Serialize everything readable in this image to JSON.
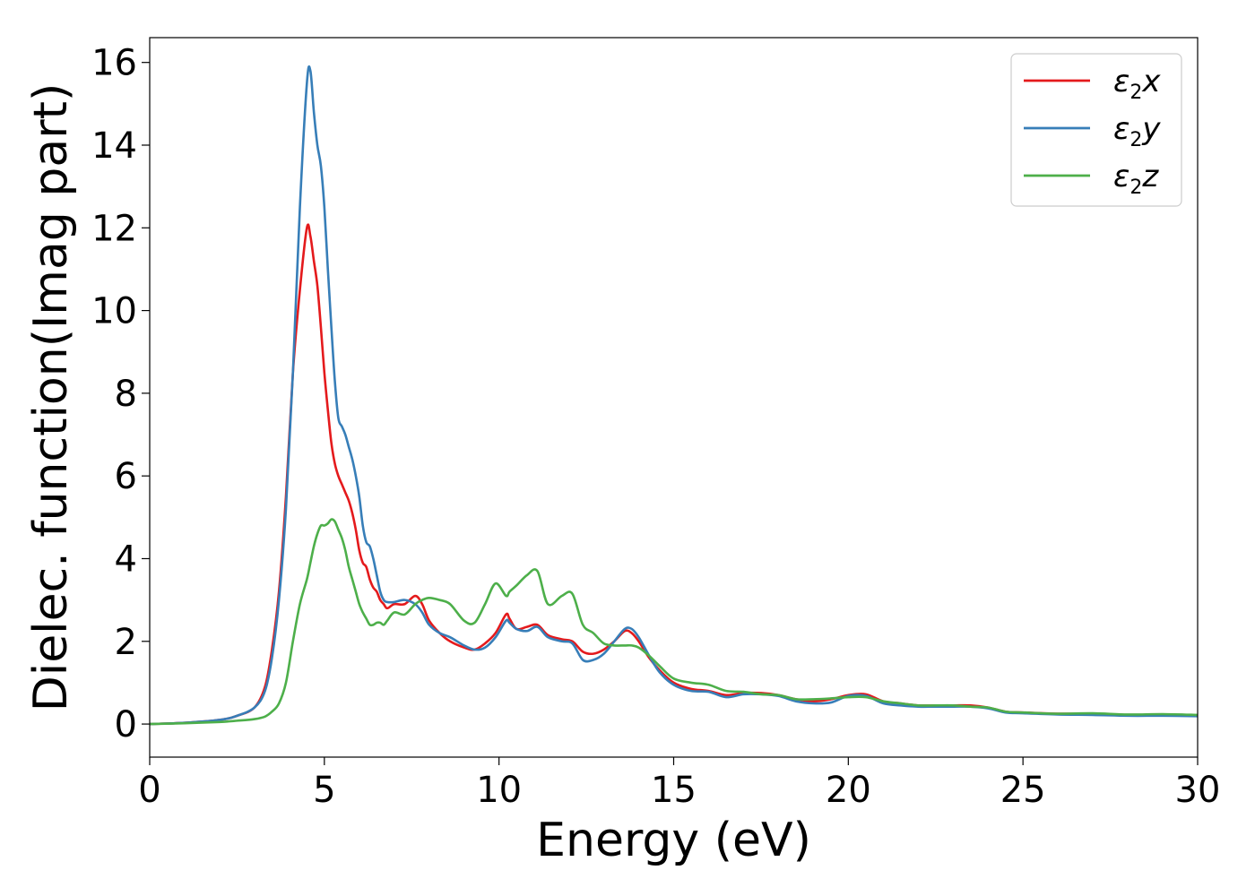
{
  "chart_data": {
    "type": "line",
    "title": "",
    "xlabel": "Energy (eV)",
    "ylabel": "Dielec. function(Imag part)",
    "xlim": [
      0,
      30
    ],
    "ylim": [
      -0.8,
      16.6
    ],
    "xticks": [
      0,
      5,
      10,
      15,
      20,
      25,
      30
    ],
    "xtick_labels": [
      "0",
      "5",
      "10",
      "15",
      "20",
      "25",
      "30"
    ],
    "yticks": [
      0,
      2,
      4,
      6,
      8,
      10,
      12,
      14,
      16
    ],
    "ytick_labels": [
      "0",
      "2",
      "4",
      "6",
      "8",
      "10",
      "12",
      "14",
      "16"
    ],
    "grid": false,
    "legend_position": "top-right",
    "series": [
      {
        "name": "ε2x",
        "label_base": "ε",
        "label_sub": "2",
        "label_suffix": "x",
        "color": "#e41a1c",
        "x": [
          0,
          1,
          2,
          2.5,
          3,
          3.3,
          3.5,
          3.7,
          3.9,
          4.1,
          4.3,
          4.5,
          4.6,
          4.7,
          4.8,
          4.9,
          5.0,
          5.1,
          5.2,
          5.3,
          5.4,
          5.5,
          5.6,
          5.7,
          5.8,
          5.9,
          6.0,
          6.1,
          6.2,
          6.3,
          6.4,
          6.5,
          6.6,
          6.7,
          6.8,
          7.0,
          7.3,
          7.6,
          7.8,
          8.0,
          8.3,
          8.6,
          9.0,
          9.3,
          9.6,
          9.9,
          10.2,
          10.3,
          10.5,
          10.8,
          11.1,
          11.4,
          11.8,
          12.1,
          12.4,
          12.7,
          13.0,
          13.3,
          13.6,
          13.8,
          14.0,
          14.3,
          14.6,
          15.0,
          15.5,
          16.0,
          16.5,
          17.0,
          17.5,
          18.0,
          18.5,
          19.0,
          19.5,
          20.0,
          20.5,
          21.0,
          21.5,
          22.0,
          22.5,
          23.0,
          23.5,
          24.0,
          24.5,
          25.0,
          26.0,
          27.0,
          28.0,
          29.0,
          30.0
        ],
        "values": [
          0.0,
          0.03,
          0.1,
          0.2,
          0.4,
          0.9,
          1.8,
          3.2,
          5.5,
          8.5,
          10.5,
          12.0,
          11.8,
          11.2,
          10.6,
          9.6,
          8.5,
          7.6,
          6.8,
          6.3,
          6.0,
          5.8,
          5.6,
          5.4,
          5.1,
          4.7,
          4.2,
          3.9,
          3.8,
          3.5,
          3.3,
          3.2,
          3.0,
          2.9,
          2.8,
          2.9,
          2.9,
          3.1,
          2.9,
          2.5,
          2.2,
          2.0,
          1.85,
          1.8,
          1.95,
          2.2,
          2.65,
          2.55,
          2.3,
          2.35,
          2.4,
          2.15,
          2.05,
          2.0,
          1.75,
          1.7,
          1.8,
          2.0,
          2.25,
          2.2,
          2.0,
          1.6,
          1.3,
          1.0,
          0.85,
          0.8,
          0.7,
          0.75,
          0.75,
          0.7,
          0.6,
          0.55,
          0.6,
          0.7,
          0.72,
          0.55,
          0.5,
          0.45,
          0.45,
          0.45,
          0.45,
          0.4,
          0.3,
          0.28,
          0.25,
          0.25,
          0.22,
          0.22,
          0.2
        ]
      },
      {
        "name": "ε2y",
        "label_base": "ε",
        "label_sub": "2",
        "label_suffix": "y",
        "color": "#377eb8",
        "x": [
          0,
          1,
          2,
          2.5,
          3,
          3.3,
          3.5,
          3.7,
          3.9,
          4.1,
          4.3,
          4.5,
          4.6,
          4.7,
          4.8,
          4.9,
          5.0,
          5.1,
          5.2,
          5.3,
          5.4,
          5.5,
          5.6,
          5.7,
          5.8,
          5.9,
          6.0,
          6.1,
          6.2,
          6.3,
          6.4,
          6.5,
          6.6,
          6.7,
          6.8,
          7.0,
          7.3,
          7.6,
          7.8,
          8.0,
          8.3,
          8.6,
          9.0,
          9.3,
          9.6,
          9.9,
          10.2,
          10.3,
          10.5,
          10.8,
          11.1,
          11.4,
          11.8,
          12.1,
          12.4,
          12.7,
          13.0,
          13.3,
          13.6,
          13.8,
          14.0,
          14.3,
          14.6,
          15.0,
          15.5,
          16.0,
          16.5,
          17.0,
          17.5,
          18.0,
          18.5,
          19.0,
          19.5,
          20.0,
          20.5,
          21.0,
          21.5,
          22.0,
          22.5,
          23.0,
          23.5,
          24.0,
          24.5,
          25.0,
          26.0,
          27.0,
          28.0,
          29.0,
          30.0
        ],
        "values": [
          0.0,
          0.03,
          0.1,
          0.2,
          0.4,
          0.8,
          1.6,
          3.0,
          5.2,
          8.5,
          12.5,
          15.5,
          15.8,
          14.8,
          14.0,
          13.5,
          12.5,
          11.0,
          9.6,
          8.3,
          7.4,
          7.2,
          7.0,
          6.7,
          6.4,
          6.0,
          5.5,
          4.8,
          4.4,
          4.3,
          4.0,
          3.6,
          3.2,
          3.0,
          2.95,
          2.95,
          3.0,
          2.9,
          2.7,
          2.4,
          2.2,
          2.1,
          1.9,
          1.8,
          1.85,
          2.1,
          2.5,
          2.45,
          2.3,
          2.25,
          2.35,
          2.1,
          2.0,
          1.95,
          1.55,
          1.55,
          1.7,
          2.0,
          2.3,
          2.3,
          2.1,
          1.65,
          1.25,
          0.95,
          0.8,
          0.78,
          0.65,
          0.72,
          0.72,
          0.68,
          0.55,
          0.5,
          0.52,
          0.68,
          0.68,
          0.5,
          0.45,
          0.42,
          0.42,
          0.42,
          0.42,
          0.38,
          0.28,
          0.26,
          0.23,
          0.22,
          0.2,
          0.2,
          0.19
        ]
      },
      {
        "name": "ε2z",
        "label_base": "ε",
        "label_sub": "2",
        "label_suffix": "z",
        "color": "#4daf4a",
        "x": [
          0,
          1,
          2,
          2.5,
          3,
          3.3,
          3.5,
          3.7,
          3.9,
          4.1,
          4.3,
          4.5,
          4.6,
          4.7,
          4.8,
          4.9,
          5.0,
          5.1,
          5.2,
          5.3,
          5.4,
          5.5,
          5.6,
          5.7,
          5.8,
          5.9,
          6.0,
          6.1,
          6.2,
          6.3,
          6.4,
          6.5,
          6.6,
          6.7,
          6.8,
          7.0,
          7.3,
          7.6,
          7.8,
          8.0,
          8.3,
          8.6,
          9.0,
          9.3,
          9.6,
          9.9,
          10.2,
          10.3,
          10.5,
          10.8,
          11.1,
          11.4,
          11.8,
          12.1,
          12.4,
          12.7,
          13.0,
          13.3,
          13.6,
          13.8,
          14.0,
          14.3,
          14.6,
          15.0,
          15.5,
          16.0,
          16.5,
          17.0,
          17.5,
          18.0,
          18.5,
          19.0,
          19.5,
          20.0,
          20.5,
          21.0,
          21.5,
          22.0,
          22.5,
          23.0,
          23.5,
          24.0,
          24.5,
          25.0,
          26.0,
          27.0,
          28.0,
          29.0,
          30.0
        ],
        "values": [
          0.0,
          0.02,
          0.05,
          0.08,
          0.12,
          0.18,
          0.3,
          0.5,
          1.0,
          2.0,
          2.9,
          3.5,
          3.9,
          4.3,
          4.6,
          4.8,
          4.8,
          4.85,
          4.95,
          4.9,
          4.7,
          4.5,
          4.2,
          3.8,
          3.5,
          3.2,
          2.9,
          2.7,
          2.55,
          2.4,
          2.4,
          2.45,
          2.45,
          2.4,
          2.5,
          2.7,
          2.65,
          2.9,
          3.0,
          3.05,
          3.0,
          2.9,
          2.5,
          2.45,
          2.9,
          3.4,
          3.1,
          3.2,
          3.35,
          3.6,
          3.7,
          2.9,
          3.1,
          3.15,
          2.4,
          2.2,
          1.95,
          1.9,
          1.9,
          1.9,
          1.85,
          1.65,
          1.4,
          1.1,
          1.0,
          0.95,
          0.8,
          0.78,
          0.72,
          0.7,
          0.6,
          0.6,
          0.62,
          0.65,
          0.65,
          0.55,
          0.5,
          0.45,
          0.45,
          0.45,
          0.42,
          0.4,
          0.3,
          0.28,
          0.25,
          0.26,
          0.23,
          0.24,
          0.22
        ]
      }
    ]
  }
}
